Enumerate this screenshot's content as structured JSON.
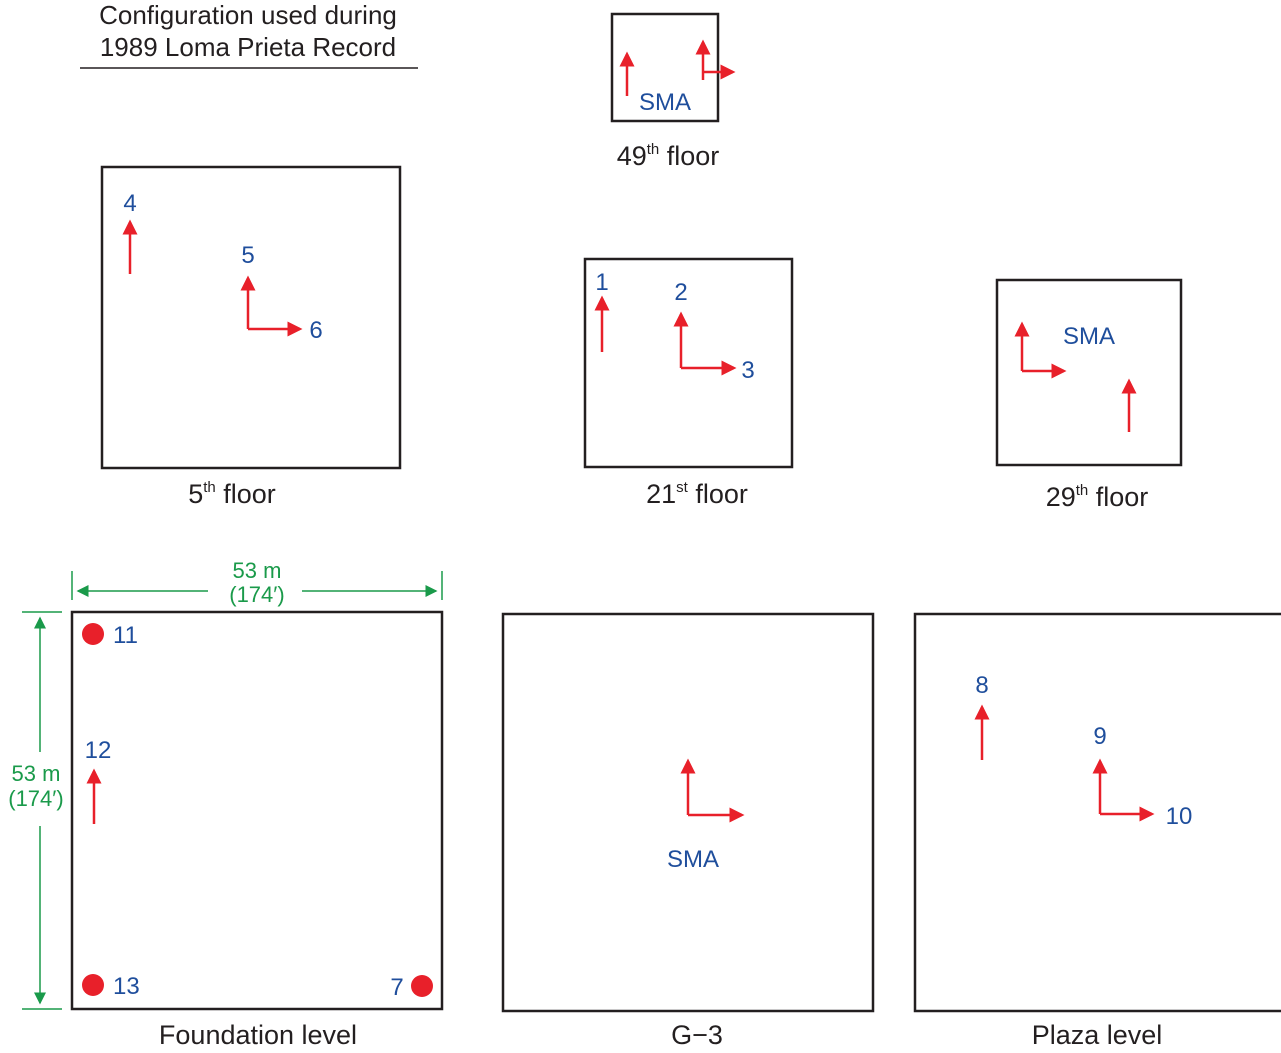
{
  "header": {
    "line1": "Configuration used during",
    "line2": "1989 Loma Prieta Record"
  },
  "labels": {
    "sma": "SMA",
    "floor_49": "49",
    "floor_49_sup": "th",
    "floor_5": "5",
    "floor_5_sup": "th",
    "floor_21": "21",
    "floor_21_sup": "st",
    "floor_29": "29",
    "floor_29_sup": "th",
    "floor_word": " floor",
    "foundation": "Foundation level",
    "g3": "G−3",
    "plaza": "Plaza level"
  },
  "channels": {
    "c1": "1",
    "c2": "2",
    "c3": "3",
    "c4": "4",
    "c5": "5",
    "c6": "6",
    "c7": "7",
    "c8": "8",
    "c9": "9",
    "c10": "10",
    "c11": "11",
    "c12": "12",
    "c13": "13"
  },
  "dimensions": {
    "width_m": "53 m",
    "width_ft": "(174′)",
    "height_m": "53 m",
    "height_ft": "(174′)"
  },
  "colors": {
    "sensor_red": "#e8202a",
    "channel_blue": "#1f4e9c",
    "dimension_green": "#1a9a4a",
    "outline": "#231f20"
  }
}
